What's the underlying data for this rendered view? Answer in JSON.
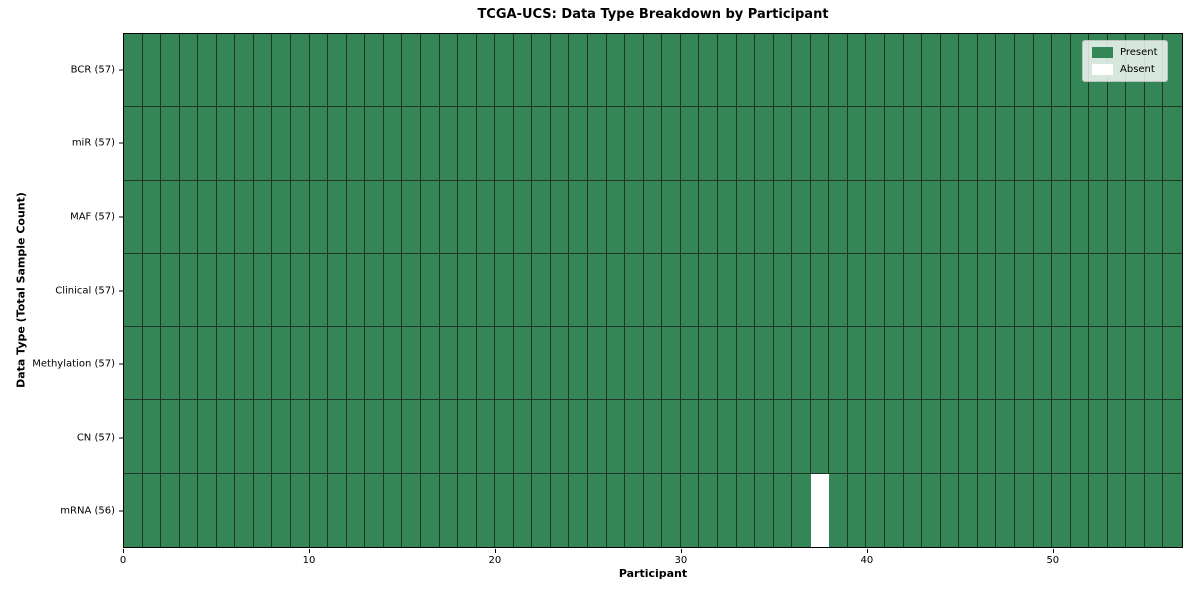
{
  "title": "TCGA-UCS: Data Type Breakdown by Participant",
  "chart_data": {
    "type": "heatmap",
    "title": "TCGA-UCS: Data Type Breakdown by Participant",
    "xlabel": "Participant",
    "ylabel": "Data Type (Total Sample Count)",
    "xlim": [
      0,
      57
    ],
    "x_ticks": [
      0,
      10,
      20,
      30,
      40,
      50
    ],
    "n_participants": 57,
    "grid": true,
    "legend_position": "upper right",
    "rows": [
      {
        "label": "BCR (57)",
        "data_type": "BCR",
        "total_samples": 57,
        "absent_participants": []
      },
      {
        "label": "miR (57)",
        "data_type": "miR",
        "total_samples": 57,
        "absent_participants": []
      },
      {
        "label": "MAF (57)",
        "data_type": "MAF",
        "total_samples": 57,
        "absent_participants": []
      },
      {
        "label": "Clinical (57)",
        "data_type": "Clinical",
        "total_samples": 57,
        "absent_participants": []
      },
      {
        "label": "Methylation (57)",
        "data_type": "Methylation",
        "total_samples": 57,
        "absent_participants": []
      },
      {
        "label": "CN (57)",
        "data_type": "CN",
        "total_samples": 57,
        "absent_participants": []
      },
      {
        "label": "mRNA (56)",
        "data_type": "mRNA",
        "total_samples": 56,
        "absent_participants": [
          37
        ]
      }
    ],
    "legend": [
      {
        "label": "Present",
        "color": "#348656"
      },
      {
        "label": "Absent",
        "color": "#ffffff"
      }
    ],
    "colors": {
      "present": "#348656",
      "absent": "#ffffff",
      "grid_line": "#1e3528",
      "frame": "#000000",
      "background": "#ffffff"
    }
  }
}
